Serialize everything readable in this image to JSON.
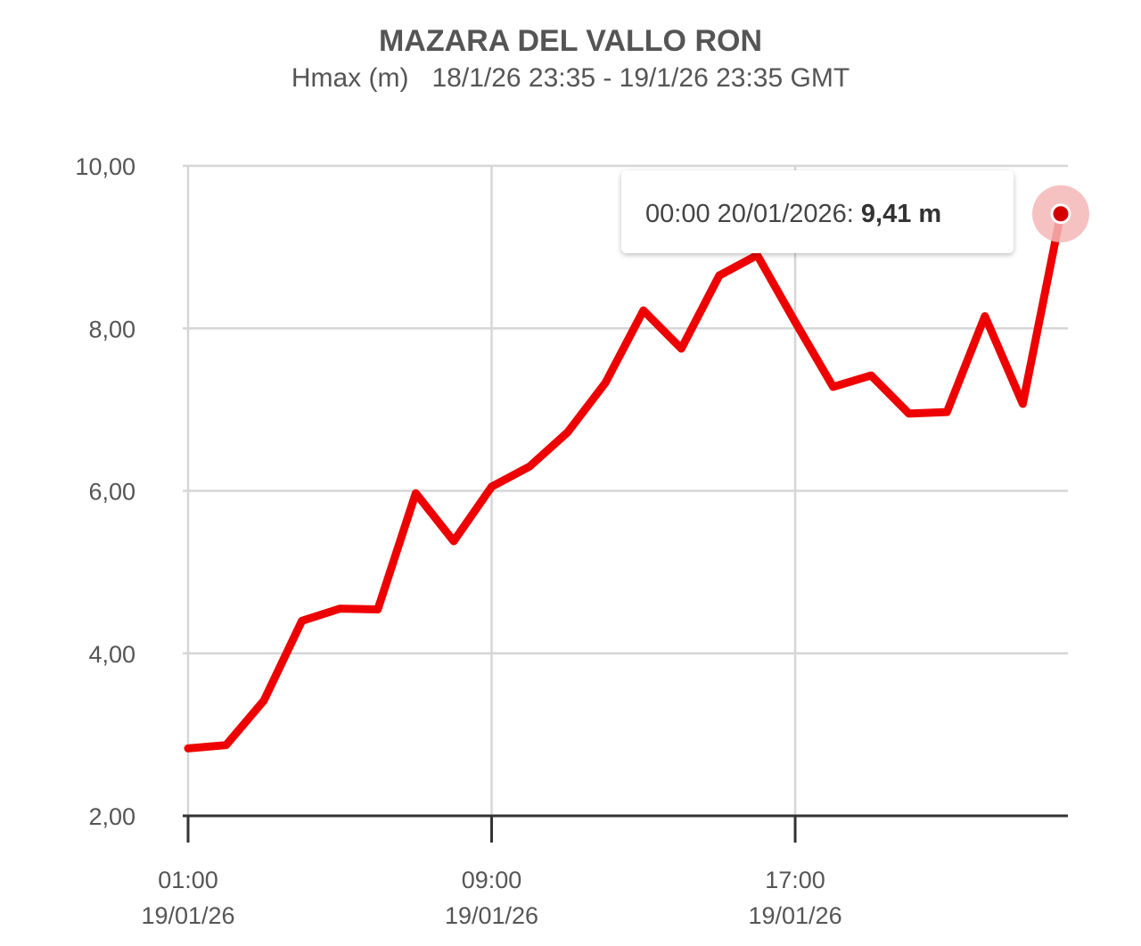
{
  "chart_data": {
    "type": "line",
    "title": "MAZARA DEL VALLO RON",
    "subtitle_measure": "Hmax (m)",
    "subtitle_range": "18/1/26 23:35 - 19/1/26 23:35 GMT",
    "ylim": [
      2,
      10
    ],
    "y_ticks": [
      "10,00",
      "8,00",
      "6,00",
      "4,00",
      "2,00"
    ],
    "y_tick_values": [
      10,
      8,
      6,
      4,
      2
    ],
    "x_hours_range": [
      1,
      24
    ],
    "x_ticks": [
      {
        "hour": 1,
        "time": "01:00",
        "date": "19/01/26"
      },
      {
        "hour": 9,
        "time": "09:00",
        "date": "19/01/26"
      },
      {
        "hour": 17,
        "time": "17:00",
        "date": "19/01/26"
      }
    ],
    "grid": true,
    "line_color": "#ee0000",
    "series": [
      {
        "x": [
          1,
          2,
          3,
          4,
          5,
          6,
          7,
          8,
          9,
          10,
          11,
          12,
          13,
          14,
          15,
          16,
          17,
          18,
          19,
          20,
          21,
          22,
          23,
          24
        ],
        "values": [
          2.83,
          2.87,
          3.42,
          4.4,
          4.55,
          4.54,
          5.97,
          5.38,
          6.05,
          6.3,
          6.72,
          7.33,
          8.22,
          7.75,
          8.65,
          8.9,
          8.08,
          7.28,
          7.42,
          6.95,
          6.97,
          8.15,
          7.07,
          9.41
        ]
      }
    ],
    "highlight": {
      "index": 23,
      "tooltip_label": "00:00 20/01/2026: ",
      "tooltip_value": "9,41 m"
    }
  }
}
